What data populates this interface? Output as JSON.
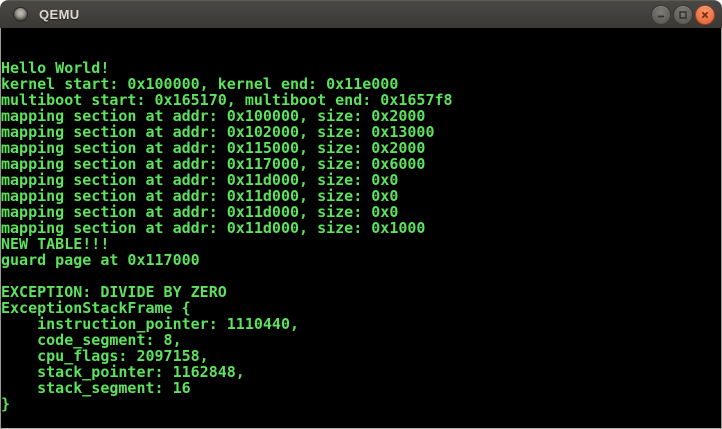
{
  "window": {
    "title": "QEMU",
    "controls": {
      "minimize": "minimize-window",
      "maximize": "maximize-window",
      "close": "close-window"
    }
  },
  "terminal": {
    "foreground": "#5ce25c",
    "background": "#000000",
    "lines": [
      "",
      "",
      "Hello World!",
      "kernel start: 0x100000, kernel end: 0x11e000",
      "multiboot start: 0x165170, multiboot end: 0x1657f8",
      "mapping section at addr: 0x100000, size: 0x2000",
      "mapping section at addr: 0x102000, size: 0x13000",
      "mapping section at addr: 0x115000, size: 0x2000",
      "mapping section at addr: 0x117000, size: 0x6000",
      "mapping section at addr: 0x11d000, size: 0x0",
      "mapping section at addr: 0x11d000, size: 0x0",
      "mapping section at addr: 0x11d000, size: 0x0",
      "mapping section at addr: 0x11d000, size: 0x1000",
      "NEW TABLE!!!",
      "guard page at 0x117000",
      "",
      "EXCEPTION: DIVIDE BY ZERO",
      "ExceptionStackFrame {",
      "    instruction_pointer: 1110440,",
      "    code_segment: 8,",
      "    cpu_flags: 2097158,",
      "    stack_pointer: 1162848,",
      "    stack_segment: 16",
      "}",
      ""
    ]
  }
}
